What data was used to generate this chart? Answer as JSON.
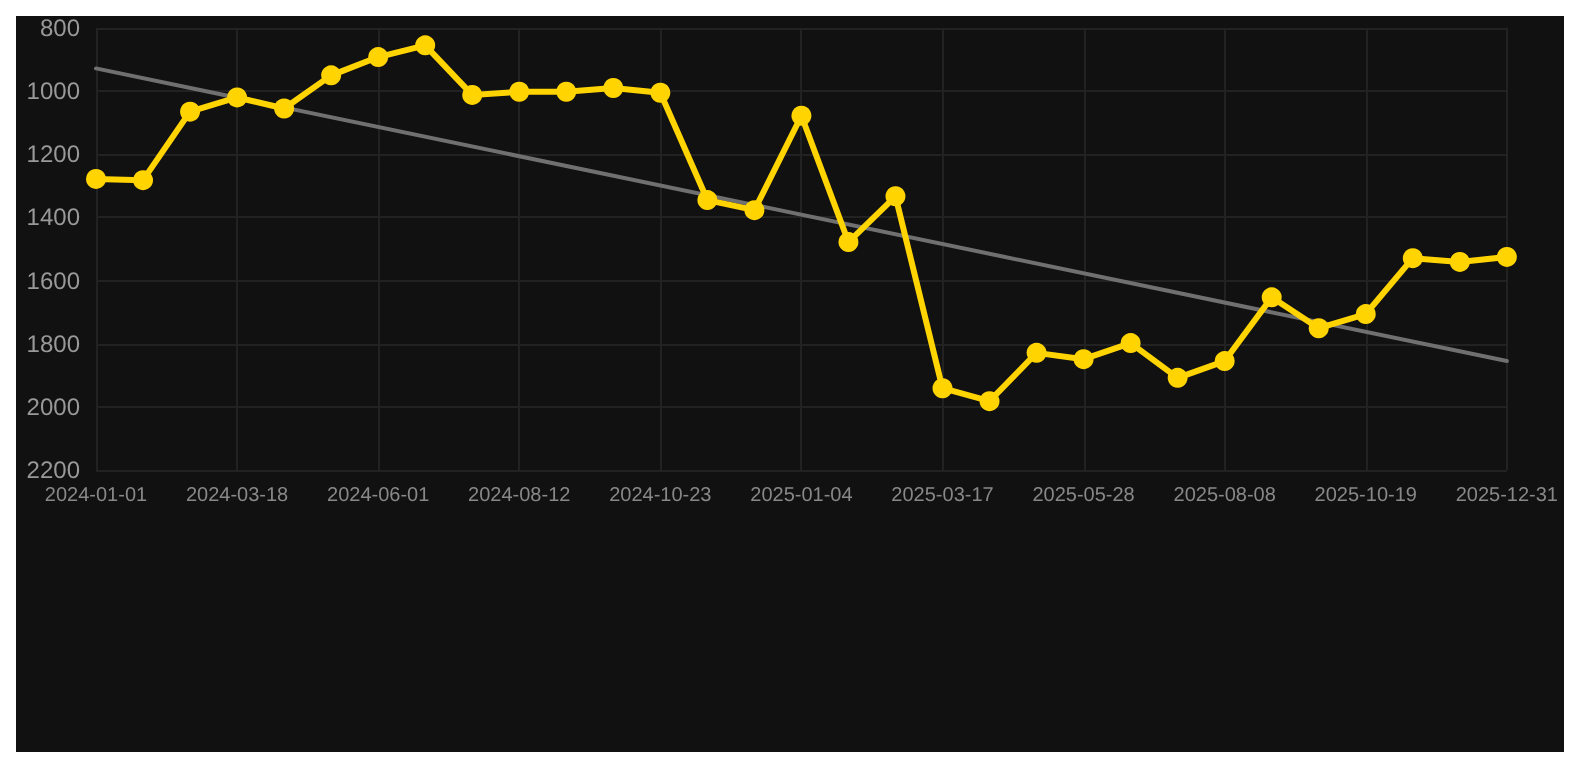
{
  "chart_data": {
    "type": "line",
    "categories": [
      "2024-01-01",
      null,
      null,
      "2024-03-18",
      null,
      null,
      "2024-06-01",
      null,
      null,
      "2024-08-12",
      null,
      null,
      "2024-10-23",
      null,
      null,
      "2025-01-04",
      null,
      null,
      "2025-03-17",
      null,
      null,
      "2025-05-28",
      null,
      null,
      "2025-08-08",
      null,
      null,
      "2025-10-19",
      null,
      null,
      "2025-12-31"
    ],
    "series": [
      {
        "color": "#ffd400",
        "values": [
          1278,
          1282,
          1065,
          1020,
          1055,
          950,
          892,
          855,
          1012,
          1002,
          1002,
          990,
          1005,
          1345,
          1377,
          1078,
          1478,
          1333,
          1941,
          1982,
          1829,
          1849,
          1798,
          1908,
          1855,
          1653,
          1751,
          1706,
          1529,
          1541,
          1525
        ]
      },
      {
        "type": "line",
        "color": "#707070",
        "marker": "none",
        "values": [
          928,
          null,
          null,
          null,
          null,
          null,
          null,
          null,
          null,
          null,
          null,
          null,
          null,
          null,
          null,
          null,
          null,
          null,
          null,
          null,
          null,
          null,
          null,
          null,
          null,
          null,
          null,
          null,
          null,
          null,
          1855
        ]
      }
    ],
    "ylim": [
      2200,
      800
    ],
    "yticks": [
      800,
      1000,
      1200,
      1400,
      1600,
      1800,
      2000,
      2200
    ],
    "grid": true,
    "marker": "circle",
    "line_style": "solid"
  }
}
